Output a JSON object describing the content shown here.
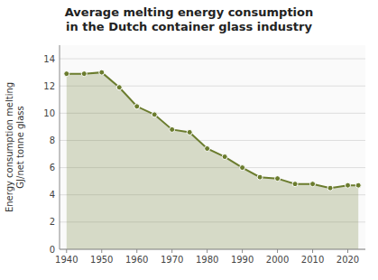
{
  "chart_data": {
    "type": "area",
    "title": "Average melting energy consumption\nin the Dutch container glass industry",
    "y_label": "Energy consumption melting\nGJ/net tonne glass",
    "x": [
      1940,
      1945,
      1950,
      1955,
      1960,
      1965,
      1970,
      1975,
      1980,
      1985,
      1990,
      1995,
      2000,
      2005,
      2010,
      2015,
      2020,
      2023
    ],
    "values": [
      12.9,
      12.9,
      13.0,
      11.9,
      10.5,
      9.9,
      8.8,
      8.6,
      7.4,
      6.8,
      6.0,
      5.3,
      5.2,
      4.8,
      4.8,
      4.5,
      4.7,
      4.7
    ],
    "color": "#6b7c2e",
    "marker": "circle",
    "xlim": [
      1938,
      2025
    ],
    "xticks": [
      1940,
      1950,
      1960,
      1970,
      1980,
      1990,
      2000,
      2010,
      2020
    ],
    "ylim": [
      0,
      15
    ],
    "yticks": [
      0,
      2,
      4,
      6,
      8,
      10,
      12,
      14
    ],
    "grid": true
  }
}
